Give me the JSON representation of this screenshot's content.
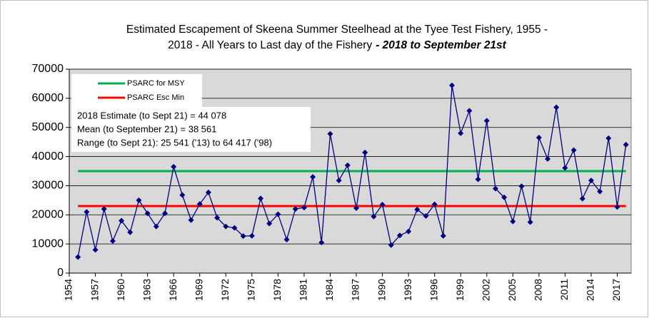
{
  "chart_data": {
    "type": "line",
    "title": [
      "Estimated Escapement of Skeena Summer Steelhead at the Tyee Test Fishery, 1955 -",
      "2018 - All Years to Last day of the Fishery"
    ],
    "title_emphasis": "- 2018 to September 21st",
    "x": [
      1955,
      1956,
      1957,
      1958,
      1959,
      1960,
      1961,
      1962,
      1963,
      1964,
      1965,
      1966,
      1967,
      1968,
      1969,
      1970,
      1971,
      1972,
      1973,
      1974,
      1975,
      1976,
      1977,
      1978,
      1979,
      1980,
      1981,
      1982,
      1983,
      1984,
      1985,
      1986,
      1987,
      1988,
      1989,
      1990,
      1991,
      1992,
      1993,
      1994,
      1995,
      1996,
      1997,
      1998,
      1999,
      2000,
      2001,
      2002,
      2003,
      2004,
      2005,
      2006,
      2007,
      2008,
      2009,
      2010,
      2011,
      2012,
      2013,
      2014,
      2015,
      2016,
      2017,
      2018
    ],
    "series": [
      {
        "color": "#000080",
        "values": [
          5500,
          21000,
          8000,
          22000,
          11000,
          18000,
          14000,
          25000,
          20500,
          16000,
          20500,
          36500,
          26800,
          18200,
          23700,
          27700,
          19000,
          16000,
          15500,
          12700,
          12800,
          25600,
          17000,
          20200,
          11500,
          22000,
          22500,
          33000,
          10500,
          47800,
          31800,
          37000,
          22300,
          41400,
          19400,
          23500,
          9600,
          12900,
          14300,
          21800,
          19600,
          23600,
          12800,
          64417,
          48000,
          55700,
          32200,
          52300,
          29000,
          26000,
          17700,
          29800,
          17500,
          46500,
          39200,
          56900,
          36100,
          42200,
          25541,
          31800,
          28000,
          46300,
          22700,
          44078
        ]
      }
    ],
    "reference_lines": [
      {
        "name": "PSARC for MSY",
        "value": 35000,
        "color": "#00b050"
      },
      {
        "name": "PSARC Esc Min",
        "value": 23000,
        "color": "#ff0000"
      }
    ],
    "annotations": [
      "2018 Estimate (to Sept 21) = 44 078",
      "Mean (to September 21) = 38 561",
      "Range (to Sept 21): 25 541 ('13) to 64 417 ('98)"
    ],
    "xlim": [
      1954,
      2018.6
    ],
    "xticks": [
      1954,
      1957,
      1960,
      1963,
      1966,
      1969,
      1972,
      1975,
      1978,
      1981,
      1984,
      1987,
      1990,
      1993,
      1996,
      1999,
      2002,
      2005,
      2008,
      2011,
      2014,
      2017
    ],
    "ylim": [
      0,
      70000
    ],
    "yticks": [
      0,
      10000,
      20000,
      30000,
      40000,
      50000,
      60000,
      70000
    ],
    "grid": true
  }
}
